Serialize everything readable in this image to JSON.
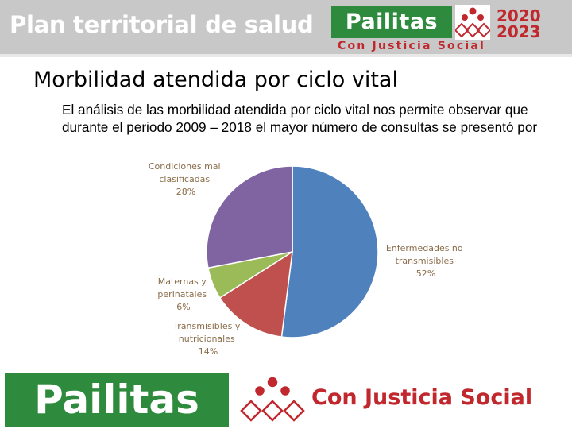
{
  "header": {
    "plan_title": "Plan territorial de salud",
    "logo_name": "Pailitas",
    "logo_year_1": "2020",
    "logo_year_2": "2023",
    "logo_slogan": "Con Justicia Social"
  },
  "slide": {
    "title": "Morbilidad atendida por ciclo vital",
    "paragraph": "El análisis de las morbilidad atendida por ciclo vital nos permite observar que durante el periodo 2009 – 2018 el mayor número de consultas se presentó por"
  },
  "chart_data": {
    "type": "pie",
    "slices": [
      {
        "label": "Enfermedades no transmisibles",
        "percent_label": "52%",
        "value": 52,
        "color": "#4f81bd"
      },
      {
        "label": "Transmisibles y nutricionales",
        "percent_label": "14%",
        "value": 14,
        "color": "#c0504d"
      },
      {
        "label": "Maternas y perinatales",
        "percent_label": "6%",
        "value": 6,
        "color": "#9bbb59"
      },
      {
        "label": "Condiciones mal clasificadas",
        "percent_label": "28%",
        "value": 28,
        "color": "#8064a2"
      }
    ],
    "label_color": "#8a6d4a",
    "legend": "none"
  },
  "footer": {
    "logo_name": "Pailitas",
    "slogan": "Con Justicia Social"
  },
  "colors": {
    "brand_green": "#2e8b3d",
    "brand_red": "#c0282e",
    "banner_gray": "#c8c8c8"
  }
}
